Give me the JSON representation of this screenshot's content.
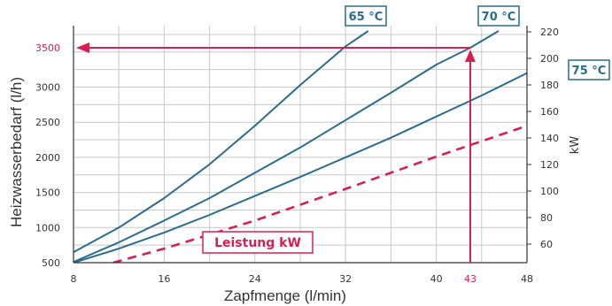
{
  "chart_data": {
    "type": "line",
    "xlabel": "Zapfmenge (l/min)",
    "ylabel": "Heizwasserbedarf (l/h)",
    "y2label": "kW",
    "xlim": [
      8,
      48
    ],
    "ylim": [
      500,
      3800
    ],
    "y2lim": [
      40,
      220
    ],
    "x_ticks": [
      "8",
      "16",
      "24",
      "32",
      "40",
      "48"
    ],
    "y_ticks": [
      "1000",
      "1500",
      "2000",
      "2500",
      "3000"
    ],
    "y2_ticks": [
      "60",
      "80",
      "100",
      "120",
      "140",
      "160",
      "180",
      "200",
      "220"
    ],
    "grid": true,
    "series": [
      {
        "name": "65 °C",
        "color": "#2a6c8f",
        "x": [
          8,
          12,
          16,
          20,
          24,
          28,
          32,
          34
        ],
        "y": [
          650,
          1000,
          1420,
          1900,
          2450,
          3030,
          3580,
          3800
        ]
      },
      {
        "name": "70 °C",
        "color": "#2a6c8f",
        "x": [
          8,
          12,
          16,
          20,
          24,
          28,
          32,
          36,
          40,
          43,
          45.5
        ],
        "y": [
          510,
          790,
          1100,
          1420,
          1780,
          2140,
          2530,
          2920,
          3320,
          3560,
          3800
        ]
      },
      {
        "name": "75 °C",
        "color": "#2a6c8f",
        "x": [
          8,
          12,
          16,
          20,
          24,
          28,
          32,
          36,
          40,
          44,
          48
        ],
        "y": [
          500,
          700,
          930,
          1180,
          1450,
          1720,
          2000,
          2280,
          2580,
          2880,
          3200
        ]
      },
      {
        "name": "Leistung kW",
        "color": "#d62050",
        "dashed": true,
        "x": [
          11.5,
          16,
          24,
          32,
          40,
          48
        ],
        "y": [
          500,
          700,
          1100,
          1550,
          2010,
          2450
        ]
      }
    ],
    "annotations": {
      "highlight_x": "43",
      "highlight_y": "3500",
      "color": "#d62050"
    }
  },
  "labels": {
    "tag_65": "65 °C",
    "tag_70": "70 °C",
    "tag_75": "75 °C",
    "tag_leistung": "Leistung kW"
  }
}
